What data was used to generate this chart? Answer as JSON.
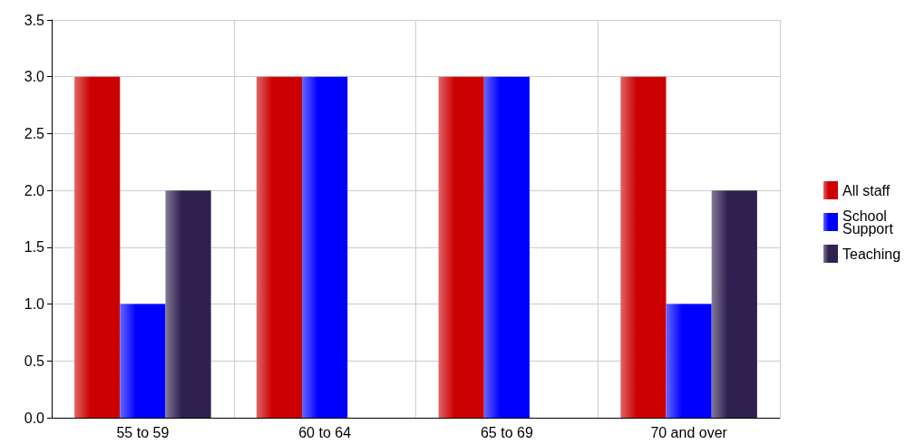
{
  "chart_data": {
    "type": "bar",
    "categories": [
      "55 to 59",
      "60 to 64",
      "65 to 69",
      "70 and over"
    ],
    "series": [
      {
        "name": "All staff",
        "color": "#cc0000",
        "values": [
          3,
          3,
          3,
          3
        ]
      },
      {
        "name": "School Support",
        "color": "#0000ff",
        "values": [
          1,
          3,
          3,
          1
        ]
      },
      {
        "name": "Teaching",
        "color": "#302050",
        "values": [
          2,
          null,
          null,
          2
        ]
      }
    ],
    "ylim": [
      0,
      3.5
    ],
    "yticks": [
      {
        "value": 0,
        "label": "0.0"
      },
      0.5,
      {
        "value": 1,
        "label": "1.0"
      },
      1.5,
      {
        "value": 2,
        "label": "2.0"
      },
      2.5,
      {
        "value": 3,
        "label": "3.0"
      },
      3.5
    ],
    "grid": true,
    "legend": "right"
  }
}
